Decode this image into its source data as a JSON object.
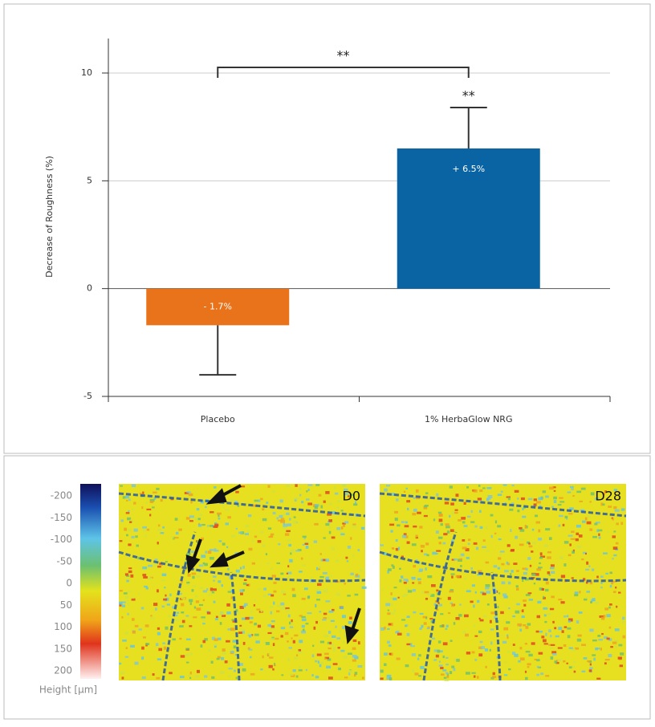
{
  "chart_data": {
    "type": "bar",
    "y_label": "Decrease of Roughness (%)",
    "categories": [
      "Placebo",
      "1% HerbaGlow NRG"
    ],
    "values": [
      -1.7,
      6.5
    ],
    "value_labels": [
      "- 1.7%",
      "+ 6.5%"
    ],
    "errors": [
      2.3,
      1.9
    ],
    "colors": [
      "#e8731a",
      "#0a64a4"
    ],
    "bracket_label": "**",
    "bar_significance": [
      null,
      "**"
    ],
    "ylim": [
      -5,
      11.6
    ],
    "yticks": [
      -5,
      0,
      5,
      10
    ],
    "grid": true
  },
  "color_scale": {
    "ticks": [
      -200,
      -150,
      -100,
      -50,
      0,
      50,
      100,
      150,
      200
    ],
    "label": "Height [µm]"
  },
  "images": [
    {
      "label": "D0"
    },
    {
      "label": "D28"
    }
  ]
}
